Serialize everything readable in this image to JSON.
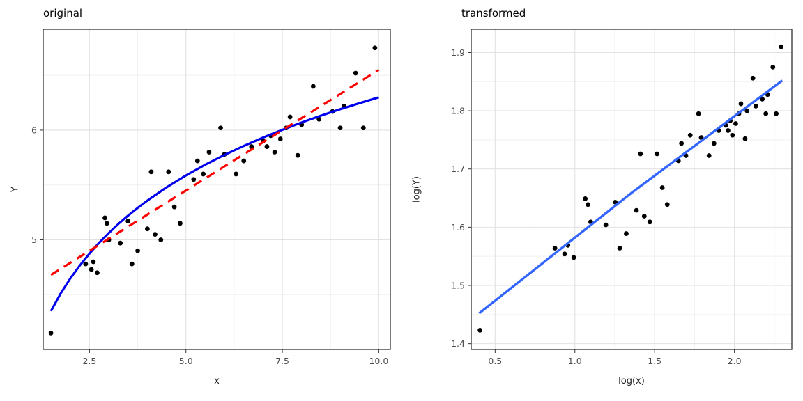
{
  "chart_data": [
    {
      "type": "scatter",
      "title": "original",
      "xlabel": "x",
      "ylabel": "Y",
      "xlim": [
        1.3,
        10.3
      ],
      "ylim": [
        4.0,
        6.92
      ],
      "xticks": [
        2.5,
        5.0,
        7.5,
        10.0
      ],
      "xtick_labels": [
        "2.5",
        "5.0",
        "7.5",
        "10.0"
      ],
      "yticks": [
        5,
        6
      ],
      "ytick_labels": [
        "5",
        "6"
      ],
      "xminor": [
        3.75,
        6.25,
        8.75
      ],
      "yminor": [
        4.5,
        5.5,
        6.5
      ],
      "grid": true,
      "legend": "none",
      "points": {
        "x": [
          1.5,
          2.4,
          2.55,
          2.6,
          2.7,
          2.9,
          2.95,
          3.0,
          3.3,
          3.5,
          3.6,
          3.75,
          4.0,
          4.1,
          4.2,
          4.35,
          4.55,
          4.7,
          4.85,
          5.2,
          5.3,
          5.45,
          5.6,
          5.9,
          6.0,
          6.3,
          6.5,
          6.7,
          7.0,
          7.1,
          7.2,
          7.3,
          7.45,
          7.6,
          7.7,
          7.9,
          8.0,
          8.3,
          8.45,
          8.8,
          9.0,
          9.1,
          9.4,
          9.6,
          9.9
        ],
        "y": [
          4.15,
          4.78,
          4.73,
          4.8,
          4.7,
          5.2,
          5.15,
          5.0,
          4.97,
          5.17,
          4.78,
          4.9,
          5.1,
          5.62,
          5.05,
          5.0,
          5.62,
          5.3,
          5.15,
          5.55,
          5.72,
          5.6,
          5.8,
          6.02,
          5.78,
          5.6,
          5.72,
          5.85,
          5.9,
          5.85,
          5.95,
          5.8,
          5.92,
          6.02,
          6.12,
          5.77,
          6.05,
          6.4,
          6.1,
          6.17,
          6.02,
          6.22,
          6.52,
          6.02,
          6.75
        ]
      },
      "lines": [
        {
          "name": "log-fit-line",
          "color": "#0000EE",
          "width": 3.2,
          "dash": "solid",
          "x": [
            1.5,
            1.75,
            2.0,
            2.25,
            2.5,
            2.75,
            3.0,
            3.25,
            3.5,
            3.75,
            4.0,
            4.5,
            5.0,
            5.5,
            6.0,
            6.5,
            7.0,
            7.5,
            8.0,
            8.5,
            9.0,
            9.5,
            10.0
          ],
          "y": [
            4.35,
            4.509,
            4.646,
            4.767,
            4.875,
            4.973,
            5.062,
            5.145,
            5.221,
            5.292,
            5.358,
            5.479,
            5.587,
            5.685,
            5.774,
            5.856,
            5.932,
            6.003,
            6.07,
            6.132,
            6.191,
            6.246,
            6.299
          ]
        },
        {
          "name": "linear-fit-line",
          "color": "#FF0000",
          "width": 3.2,
          "dash": "dashed",
          "x": [
            1.5,
            10.0
          ],
          "y": [
            4.68,
            6.55
          ]
        }
      ]
    },
    {
      "type": "scatter",
      "title": "transformed",
      "xlabel": "log(x)",
      "ylabel": "log(Y)",
      "xlim": [
        0.35,
        2.36
      ],
      "ylim": [
        1.39,
        1.94
      ],
      "xticks": [
        0.5,
        1.0,
        1.5,
        2.0
      ],
      "xtick_labels": [
        "0.5",
        "1.0",
        "1.5",
        "2.0"
      ],
      "yticks": [
        1.4,
        1.5,
        1.6,
        1.7,
        1.8,
        1.9
      ],
      "ytick_labels": [
        "1.4",
        "1.5",
        "1.6",
        "1.7",
        "1.8",
        "1.9"
      ],
      "xminor": [
        0.75,
        1.25,
        1.75,
        2.25
      ],
      "yminor": [
        1.45,
        1.55,
        1.65,
        1.75,
        1.85
      ],
      "grid": true,
      "legend": "none",
      "points": {
        "x": [
          0.405,
          0.875,
          0.936,
          0.956,
          0.993,
          1.065,
          1.082,
          1.099,
          1.194,
          1.253,
          1.281,
          1.322,
          1.386,
          1.411,
          1.435,
          1.47,
          1.515,
          1.548,
          1.579,
          1.649,
          1.668,
          1.696,
          1.723,
          1.775,
          1.792,
          1.841,
          1.872,
          1.902,
          1.946,
          1.96,
          1.974,
          1.988,
          2.008,
          2.028,
          2.041,
          2.067,
          2.079,
          2.116,
          2.134,
          2.175,
          2.197,
          2.208,
          2.241,
          2.262,
          2.293
        ],
        "y": [
          1.423,
          1.564,
          1.554,
          1.569,
          1.548,
          1.649,
          1.639,
          1.609,
          1.604,
          1.643,
          1.564,
          1.589,
          1.629,
          1.726,
          1.619,
          1.609,
          1.726,
          1.668,
          1.639,
          1.714,
          1.744,
          1.723,
          1.758,
          1.795,
          1.754,
          1.723,
          1.744,
          1.766,
          1.775,
          1.766,
          1.783,
          1.758,
          1.778,
          1.795,
          1.812,
          1.752,
          1.8,
          1.856,
          1.808,
          1.82,
          1.795,
          1.828,
          1.875,
          1.795,
          1.91
        ]
      },
      "lines": [
        {
          "name": "linear-fit-line",
          "color": "#3366FF",
          "width": 3.4,
          "dash": "solid",
          "x": [
            0.4,
            1.35,
            2.3
          ],
          "y": [
            1.452,
            1.658,
            1.852
          ]
        }
      ]
    }
  ],
  "style_colors": {
    "grid_major": "#e2e2e2",
    "grid_minor": "#f0f0f0",
    "panel_border": "#333333",
    "tick_label": "#4d4d4d",
    "point": "#000000"
  }
}
